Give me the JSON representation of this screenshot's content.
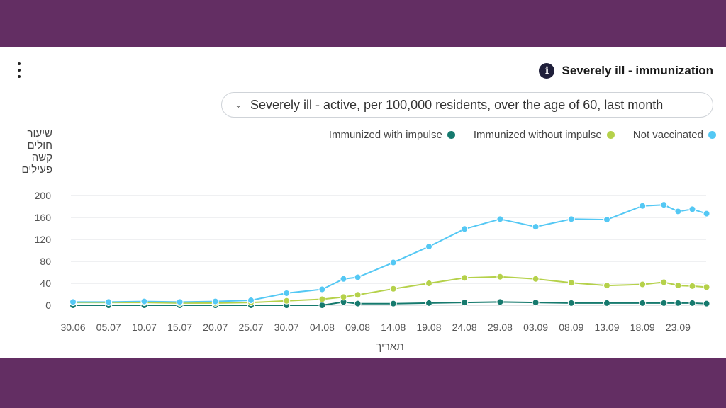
{
  "header": {
    "title": "Severely ill - immunization",
    "dropdown_value": "Severely ill - active, per 100,000 residents, over the age of 60, last month"
  },
  "colors": {
    "frame": "#632e63",
    "immunized_with_impulse": "#167a6e",
    "immunized_without_impulse": "#b5d14a",
    "not_vaccinated": "#54c8f4"
  },
  "chart_data": {
    "type": "line",
    "ylabel": "שיעור חולים קשה פעילים",
    "xlabel": "תאריך",
    "ylim": [
      0,
      200
    ],
    "yticks": [
      0,
      40,
      80,
      120,
      160,
      200
    ],
    "x_tick_labels": [
      "30.06",
      "05.07",
      "10.07",
      "15.07",
      "20.07",
      "25.07",
      "30.07",
      "04.08",
      "09.08",
      "14.08",
      "19.08",
      "24.08",
      "29.08",
      "03.09",
      "08.09",
      "13.09",
      "18.09",
      "23.09"
    ],
    "legend_placement": "top-right",
    "grid": true,
    "x": [
      "30.06",
      "05.07",
      "10.07",
      "15.07",
      "20.07",
      "25.07",
      "30.07",
      "04.08",
      "07.08",
      "09.08",
      "14.08",
      "19.08",
      "24.08",
      "29.08",
      "03.09",
      "08.09",
      "13.09",
      "18.09",
      "21.09",
      "23.09",
      "25.09",
      "27.09"
    ],
    "series": [
      {
        "name": "Immunized with impulse",
        "color": "#167a6e",
        "values": [
          0,
          0,
          0,
          0,
          0,
          0,
          0,
          0,
          6,
          3,
          3,
          4,
          5,
          6,
          5,
          4,
          4,
          4,
          4,
          4,
          4,
          3
        ]
      },
      {
        "name": "Immunized without impulse",
        "color": "#b5d14a",
        "values": [
          5,
          5,
          5,
          4,
          4,
          5,
          8,
          11,
          15,
          19,
          30,
          40,
          50,
          52,
          48,
          41,
          36,
          38,
          42,
          36,
          35,
          33
        ]
      },
      {
        "name": "Not vaccinated",
        "color": "#54c8f4",
        "values": [
          6,
          6,
          7,
          6,
          7,
          9,
          22,
          29,
          48,
          51,
          78,
          107,
          139,
          157,
          143,
          157,
          156,
          181,
          183,
          171,
          175,
          167
        ]
      }
    ]
  }
}
